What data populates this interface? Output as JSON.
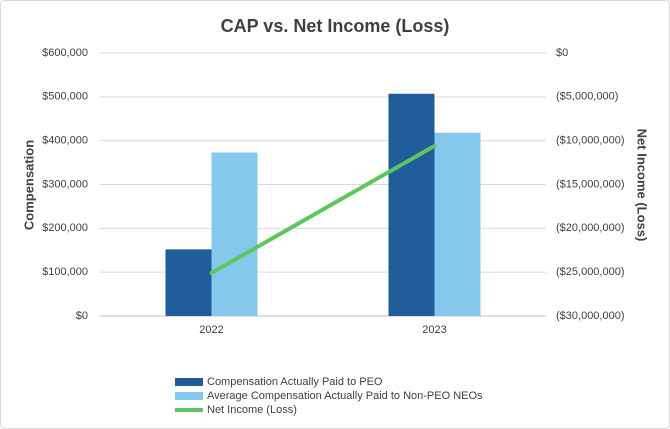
{
  "chart_data": {
    "type": "bar",
    "title": "CAP vs. Net Income (Loss)",
    "y_label": "Compensation",
    "y2_label": "Net Income (Loss)",
    "categories": [
      "2022",
      "2023"
    ],
    "series": [
      {
        "name": "Compensation Actually Paid to PEO",
        "color": "#1f5c99",
        "values": [
          152000,
          507000
        ]
      },
      {
        "name": "Average Compensation Actually Paid to Non-PEO NEOs",
        "color": "#86c8ec",
        "values": [
          373000,
          418000
        ]
      },
      {
        "name": "Net Income (Loss)",
        "color": "#5ec65e",
        "type": "line",
        "axis": "y2",
        "values": [
          -25100000,
          -10600000
        ]
      }
    ],
    "ylim": [
      0,
      600000
    ],
    "yticks": [
      {
        "value": 0,
        "label": "$0"
      },
      {
        "value": 100000,
        "label": "$100,000"
      },
      {
        "value": 200000,
        "label": "$200,000"
      },
      {
        "value": 300000,
        "label": "$300,000"
      },
      {
        "value": 400000,
        "label": "$400,000"
      },
      {
        "value": 500000,
        "label": "$500,000"
      },
      {
        "value": 600000,
        "label": "$600,000"
      }
    ],
    "y2lim": [
      -30000000,
      0
    ],
    "y2ticks": [
      {
        "value": -30000000,
        "label": "($30,000,000)"
      },
      {
        "value": -25000000,
        "label": "($25,000,000)"
      },
      {
        "value": -20000000,
        "label": "($20,000,000)"
      },
      {
        "value": -15000000,
        "label": "($15,000,000)"
      },
      {
        "value": -10000000,
        "label": "($10,000,000)"
      },
      {
        "value": -5000000,
        "label": "($5,000,000)"
      },
      {
        "value": 0,
        "label": "$0"
      }
    ],
    "grid": true,
    "legend": "bottom"
  }
}
